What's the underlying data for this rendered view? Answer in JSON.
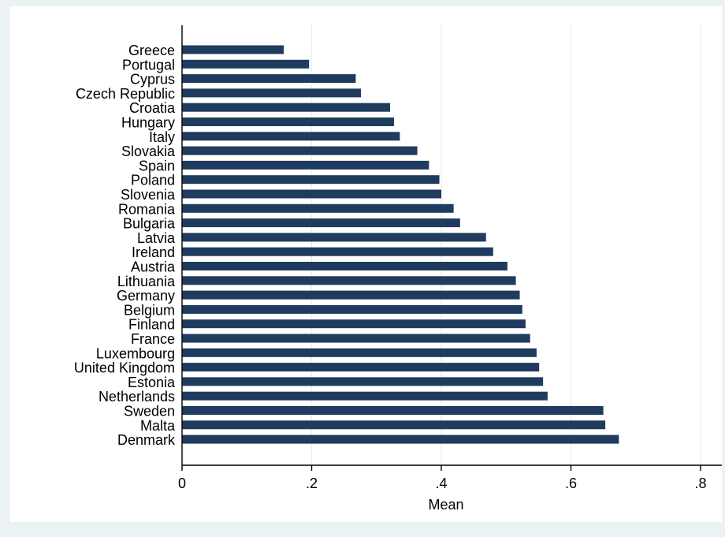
{
  "chart_data": {
    "type": "bar",
    "orientation": "horizontal",
    "categories": [
      "Greece",
      "Portugal",
      "Cyprus",
      "Czech Republic",
      "Croatia",
      "Hungary",
      "Italy",
      "Slovakia",
      "Spain",
      "Poland",
      "Slovenia",
      "Romania",
      "Bulgaria",
      "Latvia",
      "Ireland",
      "Austria",
      "Lithuania",
      "Germany",
      "Belgium",
      "Finland",
      "France",
      "Luxembourg",
      "United Kingdom",
      "Estonia",
      "Netherlands",
      "Sweden",
      "Malta",
      "Denmark"
    ],
    "values": [
      0.157,
      0.196,
      0.268,
      0.276,
      0.321,
      0.327,
      0.336,
      0.363,
      0.381,
      0.397,
      0.4,
      0.419,
      0.429,
      0.469,
      0.48,
      0.502,
      0.515,
      0.521,
      0.525,
      0.53,
      0.537,
      0.547,
      0.551,
      0.557,
      0.564,
      0.65,
      0.653,
      0.674
    ],
    "title": "",
    "xlabel": "Mean",
    "ylabel": "",
    "xlim": [
      0,
      0.8
    ],
    "xticks": [
      0,
      0.2,
      0.4,
      0.6,
      0.8
    ],
    "xtick_labels": [
      "0",
      ".2",
      ".4",
      ".6",
      ".8"
    ],
    "grid": true,
    "legend": "none",
    "colors": {
      "bar": "#1f3b5e",
      "plot_background": "#ffffff",
      "page_background": "#eaf2f3",
      "grid": "#e7ecee",
      "axis": "#000000"
    }
  }
}
